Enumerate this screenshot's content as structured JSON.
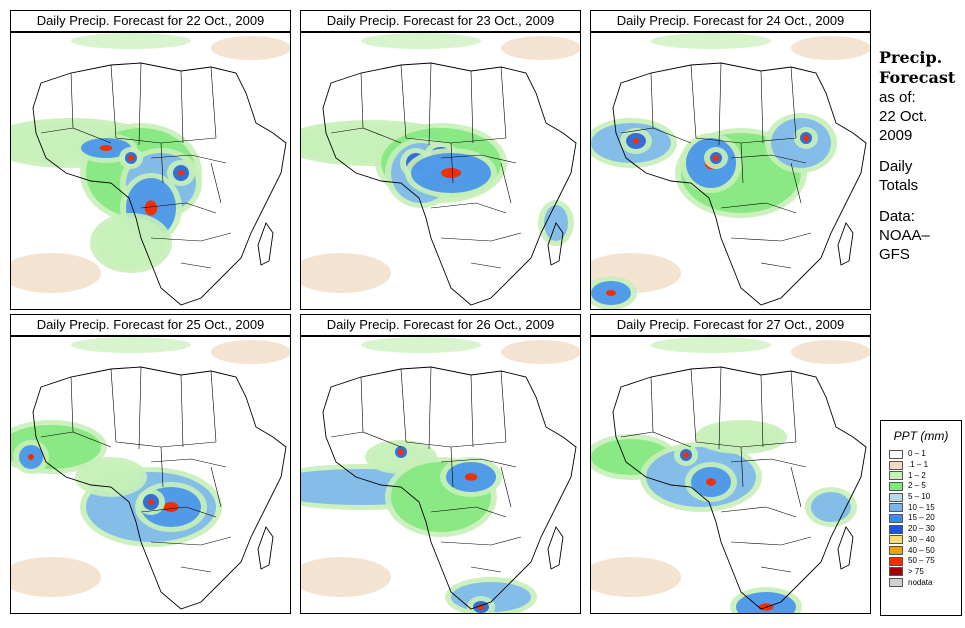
{
  "panels": [
    {
      "title": "Daily Precip. Forecast for  22 Oct., 2009"
    },
    {
      "title": "Daily Precip. Forecast for  23 Oct., 2009"
    },
    {
      "title": "Daily Precip. Forecast for  24 Oct., 2009"
    },
    {
      "title": "Daily Precip. Forecast for  25 Oct., 2009"
    },
    {
      "title": "Daily Precip. Forecast for  26 Oct., 2009"
    },
    {
      "title": "Daily Precip. Forecast for  27 Oct., 2009"
    }
  ],
  "sidebar": {
    "title_line1": "Precip.",
    "title_line2": "Forecast",
    "asof_line1": "as of:",
    "asof_line2": "22 Oct.",
    "asof_line3": "2009",
    "totals_line1": "Daily",
    "totals_line2": "Totals",
    "data_line1": "Data:",
    "data_line2": "NOAA–",
    "data_line3": "GFS"
  },
  "legend": {
    "title": "PPT (mm)",
    "items": [
      {
        "label": "0 – 1",
        "color": "#ffffff"
      },
      {
        "label": ".1 – 1",
        "color": "#f0dcc4"
      },
      {
        "label": "1 – 2",
        "color": "#c6f0b8"
      },
      {
        "label": "2 – 5",
        "color": "#7ee87a"
      },
      {
        "label": "5 – 10",
        "color": "#b8d8f0"
      },
      {
        "label": "10 – 15",
        "color": "#78b4f0"
      },
      {
        "label": "15 – 20",
        "color": "#3c8cf0"
      },
      {
        "label": "20 – 30",
        "color": "#1c58dc"
      },
      {
        "label": "30 – 40",
        "color": "#f8dc78"
      },
      {
        "label": "40 – 50",
        "color": "#f8a000"
      },
      {
        "label": "50 – 75",
        "color": "#f03000"
      },
      {
        "label": "> 75",
        "color": "#a00000"
      },
      {
        "label": "nodata",
        "color": "#d0d0d0"
      }
    ]
  }
}
